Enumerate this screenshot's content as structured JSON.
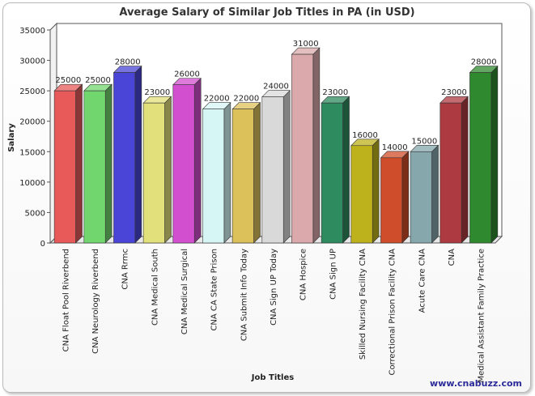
{
  "chart_data": {
    "type": "bar",
    "title": "Average Salary of Similar Job Titles in PA (in USD)",
    "xlabel": "Job Titles",
    "ylabel": "Salary",
    "ylim": [
      0,
      35000
    ],
    "yticks": [
      0,
      5000,
      10000,
      15000,
      20000,
      25000,
      30000,
      35000
    ],
    "grid": false,
    "style": "3d",
    "categories": [
      "CNA Float Pool Riverbend",
      "CNA Neurology Riverbend",
      "CNA Rrmc",
      "CNA Medical South",
      "CNA Medical Surgical",
      "CNA CA State Prison",
      "CNA Submit Info Today",
      "CNA Sign UP Today",
      "CNA Hospice",
      "CNA Sign UP",
      "Skilled Nursing Facility CNA",
      "Correctional Prison Facility CNA",
      "Acute Care CNA",
      "CNA",
      "Medical Assistant Family Practice"
    ],
    "values": [
      25000,
      25000,
      28000,
      23000,
      26000,
      22000,
      22000,
      24000,
      31000,
      23000,
      16000,
      14000,
      15000,
      23000,
      28000
    ],
    "data_labels": [
      "25000",
      "25000",
      "28000",
      "23000",
      "26000",
      "22000",
      "22000",
      "24000",
      "31000",
      "23000",
      "16000",
      "14000",
      "15000",
      "23000",
      "28000"
    ],
    "colors": [
      "#e85a5a",
      "#72d66e",
      "#4a45d6",
      "#e2e07a",
      "#d24fcf",
      "#d6f6f6",
      "#dcc05a",
      "#d9d9d9",
      "#dba9ab",
      "#2e8b5f",
      "#bdb21c",
      "#cf4d2a",
      "#86a7ac",
      "#ad3a40",
      "#2f8a2f"
    ]
  },
  "watermark": "www.cnabuzz.com"
}
